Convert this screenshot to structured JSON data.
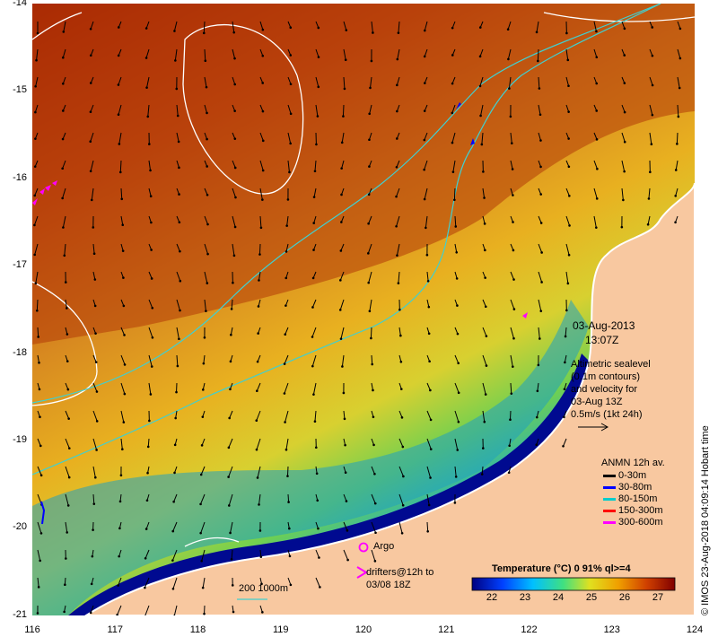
{
  "map": {
    "y_axis_labels": [
      "-14",
      "-15",
      "-16",
      "-17",
      "-18",
      "-19",
      "-20",
      "-21"
    ],
    "x_axis_labels": [
      "116",
      "117",
      "118",
      "119",
      "120",
      "121",
      "122",
      "123",
      "124"
    ],
    "date": "03-Aug-2013",
    "time": "13:07Z",
    "altimetry_note": [
      "Altimetric sealevel",
      "(0.1m contours)",
      "and velocity for",
      "03-Aug 13Z",
      "0.5m/s (1kt 24h)"
    ],
    "anmn_title": "ANMN 12h av.",
    "anmn_legend": [
      {
        "label": "0-30m",
        "color": "#000000"
      },
      {
        "label": "30-80m",
        "color": "#0000ff"
      },
      {
        "label": "80-150m",
        "color": "#00cccc"
      },
      {
        "label": "150-300m",
        "color": "#ff0000"
      },
      {
        "label": "300-600m",
        "color": "#ff00ff"
      }
    ],
    "argo_label": "Argo",
    "drifters_label": [
      "drifters@12h to",
      "03/08 18Z"
    ],
    "depth_contour_label": "200  1000m",
    "colorbar_title": "Temperature (°C) 0 91% ql>=4",
    "colorbar_ticks": [
      "22",
      "23",
      "24",
      "25",
      "26",
      "27"
    ],
    "credit": "© IMOS 23-Aug-2018 04:09:14 Hobart time"
  }
}
